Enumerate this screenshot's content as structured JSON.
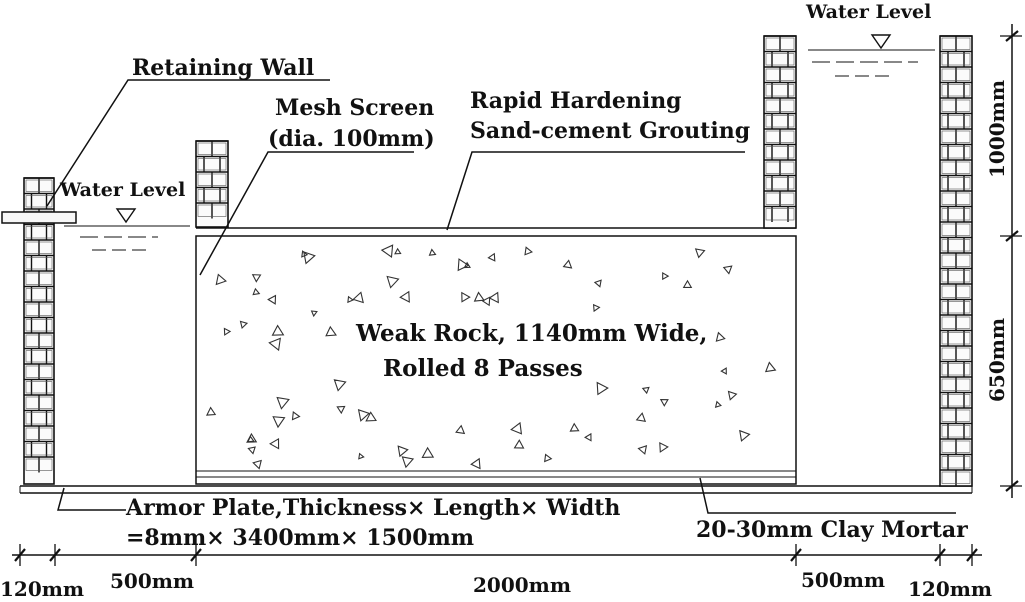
{
  "labels": {
    "retaining_wall": "Retaining Wall",
    "mesh_screen_line1": "Mesh Screen",
    "mesh_screen_line2": "(dia. 100mm)",
    "rapid_line1": "Rapid Hardening",
    "rapid_line2": "Sand-cement Grouting",
    "water_level_left": "Water Level",
    "water_level_right": "Water Level",
    "weak_rock_line1": "Weak Rock,  1140mm Wide,",
    "weak_rock_line2": "Rolled 8 Passes",
    "armor_line1": "Armor Plate,Thickness× Length× Width",
    "armor_line2": "=8mm× 3400mm× 1500mm",
    "clay_mortar": "20-30mm Clay Mortar"
  },
  "dimensions": {
    "bottom": [
      "120mm",
      "500mm",
      "2000mm",
      "500mm",
      "120mm"
    ],
    "right": [
      "1000mm",
      "650mm"
    ]
  }
}
